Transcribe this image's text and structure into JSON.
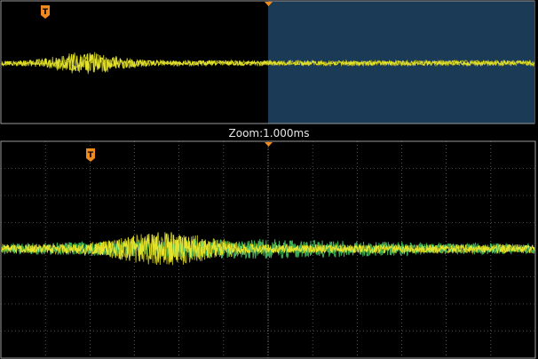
{
  "zoom": {
    "label": "Zoom:1.000ms"
  },
  "markers": {
    "trigger_position_glyph": "T",
    "trigger_icon": "trigger-position-icon",
    "timebase_icon": "timebase-position-icon"
  },
  "colors": {
    "background": "#000000",
    "trace": "#e4e22a",
    "trace_shadow": "#a8a820",
    "trace_secondary": "#3fae55",
    "zoom_window": "#1b3a55",
    "grid": "#8a8a8a",
    "marker": "#f08a1c",
    "frame": "#9a9a9a"
  }
}
